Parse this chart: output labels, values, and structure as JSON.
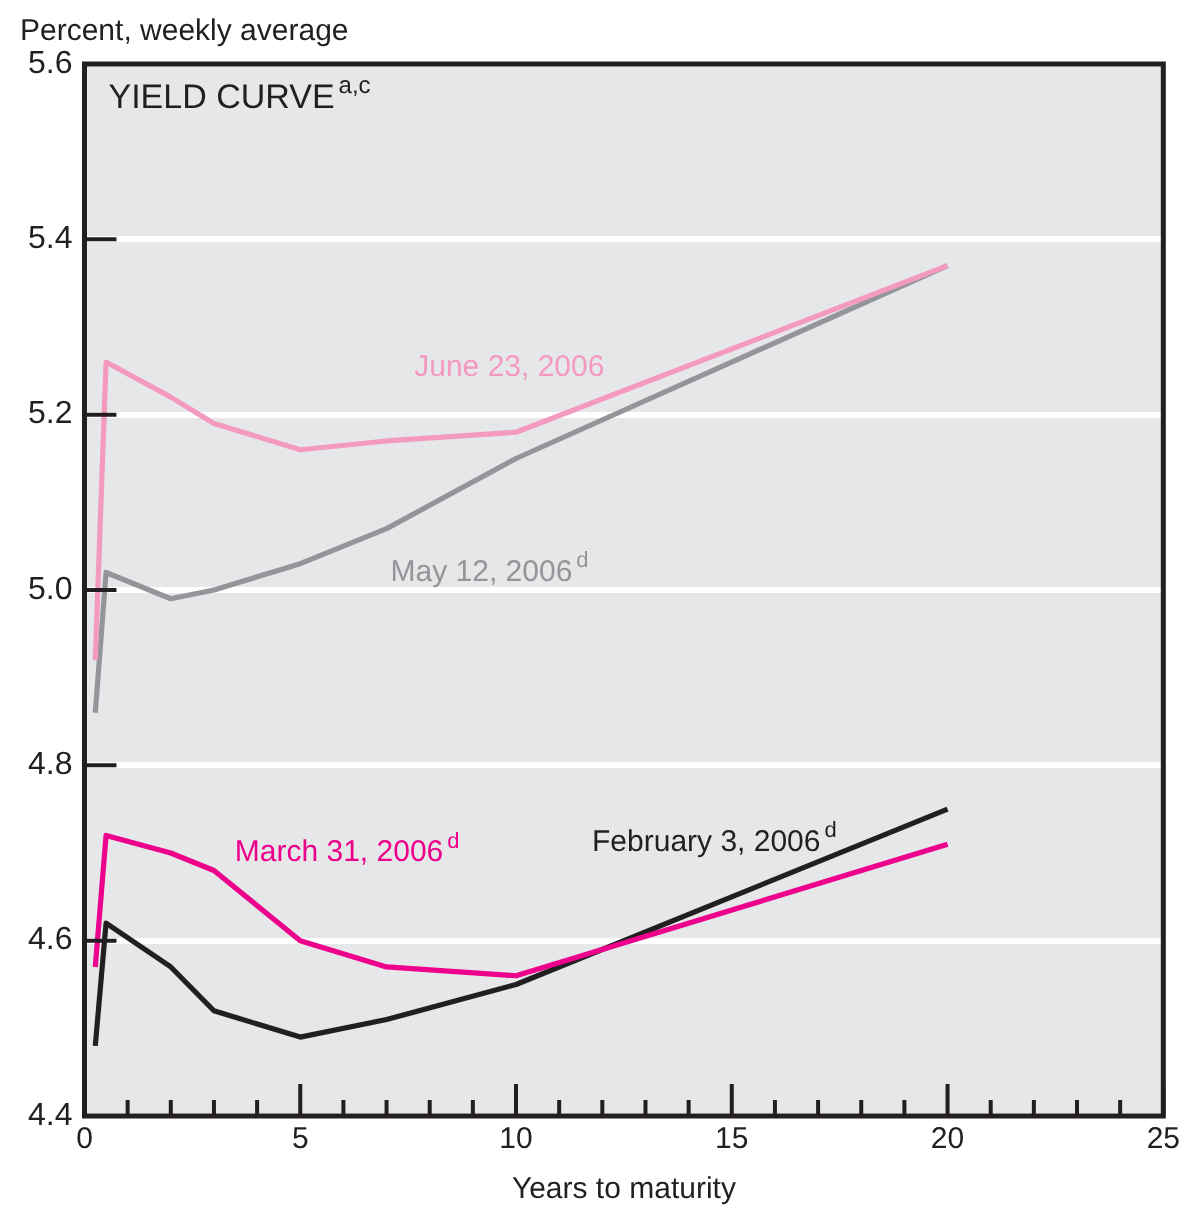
{
  "chart_data": {
    "type": "line",
    "title": "YIELD CURVE$^{a,c}$",
    "xlabel": "Years to maturity",
    "ylabel": "Percent, weekly average",
    "x": [
      0.25,
      0.5,
      2,
      3,
      5,
      7,
      10,
      20
    ],
    "series": [
      {
        "name": "June 23, 2006",
        "color": "#f49ac1",
        "values": [
          4.92,
          5.26,
          5.22,
          5.19,
          5.16,
          5.17,
          5.18,
          5.37
        ]
      },
      {
        "name": "May 12, 2006$^{d}$",
        "color": "#939598",
        "values": [
          4.86,
          5.02,
          4.99,
          5.0,
          5.03,
          5.07,
          5.15,
          5.37
        ]
      },
      {
        "name": "March 31, 2006$^{d}$",
        "color": "#ec008c",
        "values": [
          4.57,
          4.72,
          4.7,
          4.68,
          4.6,
          4.57,
          4.56,
          4.71
        ]
      },
      {
        "name": "February 3, 2006$^{d}$",
        "color": "#231f20",
        "values": [
          4.48,
          4.62,
          4.57,
          4.52,
          4.49,
          4.51,
          4.55,
          4.75
        ]
      }
    ],
    "xlim": [
      0,
      25
    ],
    "xticks": [
      0,
      {
        "value": 1,
        "label": null
      },
      {
        "value": 2,
        "label": null
      },
      {
        "value": 3,
        "label": null
      },
      {
        "value": 4,
        "label": null
      },
      5,
      {
        "value": 6,
        "label": null
      },
      {
        "value": 7,
        "label": null
      },
      {
        "value": 8,
        "label": null
      },
      {
        "value": 9,
        "label": null
      },
      10,
      {
        "value": 11,
        "label": null
      },
      {
        "value": 12,
        "label": null
      },
      {
        "value": 13,
        "label": null
      },
      {
        "value": 14,
        "label": null
      },
      15,
      {
        "value": 16,
        "label": null
      },
      {
        "value": 17,
        "label": null
      },
      {
        "value": 18,
        "label": null
      },
      {
        "value": 19,
        "label": null
      },
      20,
      {
        "value": 21,
        "label": null
      },
      {
        "value": 22,
        "label": null
      },
      {
        "value": 23,
        "label": null
      },
      {
        "value": 24,
        "label": null
      },
      25
    ],
    "ylim": [
      4.4,
      5.6
    ],
    "yticks": [
      {
        "value": 4.4,
        "label": "4.4"
      },
      {
        "value": 4.6,
        "label": "4.6"
      },
      {
        "value": 4.8,
        "label": "4.8"
      },
      {
        "value": 5.0,
        "label": "5.0"
      },
      {
        "value": 5.2,
        "label": "5.2"
      },
      {
        "value": 5.4,
        "label": "5.4"
      },
      {
        "value": 5.6,
        "label": "5.6"
      }
    ],
    "grid": "y",
    "legend": false,
    "marker": "none",
    "line_style": "solid"
  }
}
